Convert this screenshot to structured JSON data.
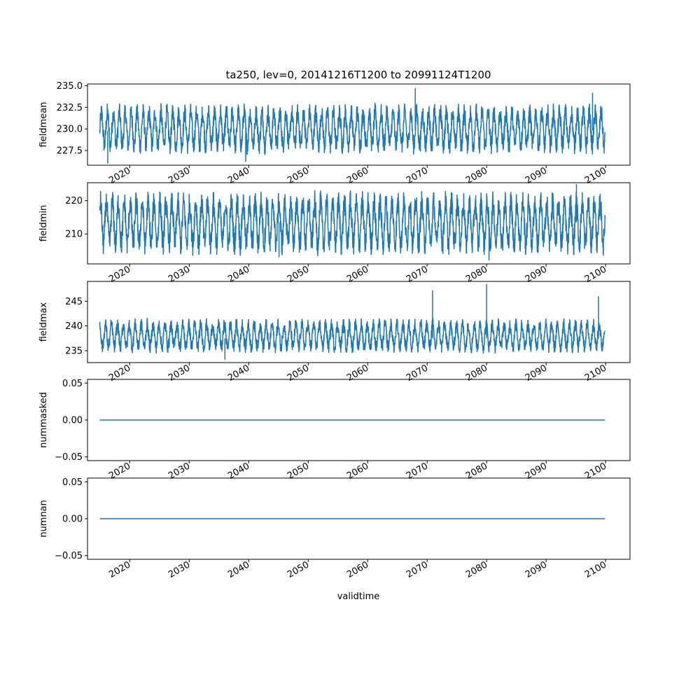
{
  "figure": {
    "title": "ta250, lev=0, 20141216T1200 to 20991124T1200",
    "xlabel": "validtime"
  },
  "colors": {
    "series": "#1f77b4",
    "axes": "#000000",
    "background": "#ffffff"
  },
  "chart_data": [
    {
      "type": "line",
      "ylabel": "fieldmean",
      "x_range": [
        "2014-12-16",
        "2099-11-24"
      ],
      "xlim": [
        2012.9,
        2104.1
      ],
      "ylim": [
        225.8,
        235.2
      ],
      "yticks": [
        "227.5",
        "230.0",
        "232.5",
        "235.0"
      ],
      "ytick_values": [
        227.5,
        230.0,
        232.5,
        235.0
      ],
      "xticks": [
        "2020",
        "2030",
        "2040",
        "2050",
        "2060",
        "2070",
        "2080",
        "2090",
        "2100"
      ],
      "seasonal_range": [
        227.5,
        232.5
      ],
      "baseline": 229.8,
      "extremes": [
        {
          "x": 2068.0,
          "y": 234.7
        },
        {
          "x": 2097.8,
          "y": 234.2
        },
        {
          "x": 2016.3,
          "y": 226.0
        },
        {
          "x": 2039.5,
          "y": 226.2
        }
      ],
      "grid": false
    },
    {
      "type": "line",
      "ylabel": "fieldmin",
      "x_range": [
        "2014-12-16",
        "2099-11-24"
      ],
      "xlim": [
        2012.9,
        2104.1
      ],
      "ylim": [
        201.0,
        225.4
      ],
      "yticks": [
        "210",
        "220"
      ],
      "ytick_values": [
        210,
        220
      ],
      "xticks": [
        "2020",
        "2030",
        "2040",
        "2050",
        "2060",
        "2070",
        "2080",
        "2090",
        "2100"
      ],
      "seasonal_range": [
        205.0,
        221.5
      ],
      "baseline": 213.5,
      "extremes": [
        {
          "x": 2095.1,
          "y": 225.0
        },
        {
          "x": 2080.4,
          "y": 202.0
        },
        {
          "x": 2045.1,
          "y": 203.0
        }
      ],
      "grid": false
    },
    {
      "type": "line",
      "ylabel": "fieldmax",
      "x_range": [
        "2014-12-16",
        "2099-11-24"
      ],
      "xlim": [
        2012.9,
        2104.1
      ],
      "ylim": [
        232.6,
        249.0
      ],
      "yticks": [
        "235",
        "240",
        "245"
      ],
      "ytick_values": [
        235,
        240,
        245
      ],
      "xticks": [
        "2020",
        "2030",
        "2040",
        "2050",
        "2060",
        "2070",
        "2080",
        "2090",
        "2100"
      ],
      "seasonal_range": [
        235.0,
        241.0
      ],
      "baseline": 237.5,
      "extremes": [
        {
          "x": 2080.0,
          "y": 248.5
        },
        {
          "x": 2070.9,
          "y": 247.2
        },
        {
          "x": 2098.8,
          "y": 246.0
        },
        {
          "x": 2036.0,
          "y": 233.2
        }
      ],
      "grid": false
    },
    {
      "type": "line",
      "ylabel": "nummasked",
      "x_range": [
        "2014-12-16",
        "2099-11-24"
      ],
      "xlim": [
        2012.9,
        2104.1
      ],
      "ylim": [
        -0.055,
        0.055
      ],
      "yticks": [
        "−0.05",
        "0.00",
        "0.05"
      ],
      "ytick_values": [
        -0.05,
        0.0,
        0.05
      ],
      "xticks": [
        "2020",
        "2030",
        "2040",
        "2050",
        "2060",
        "2070",
        "2080",
        "2090",
        "2100"
      ],
      "constant": 0.0,
      "grid": false
    },
    {
      "type": "line",
      "ylabel": "numnan",
      "x_range": [
        "2014-12-16",
        "2099-11-24"
      ],
      "xlim": [
        2012.9,
        2104.1
      ],
      "ylim": [
        -0.055,
        0.055
      ],
      "yticks": [
        "−0.05",
        "0.00",
        "0.05"
      ],
      "ytick_values": [
        -0.05,
        0.0,
        0.05
      ],
      "xticks": [
        "2020",
        "2030",
        "2040",
        "2050",
        "2060",
        "2070",
        "2080",
        "2090",
        "2100"
      ],
      "constant": 0.0,
      "grid": false
    }
  ]
}
